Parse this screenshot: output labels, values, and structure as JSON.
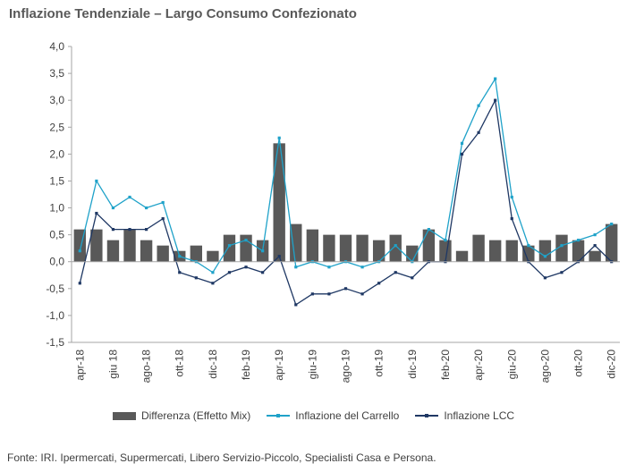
{
  "chart_data": {
    "type": "bar",
    "title": "Inflazione Tendenziale – Largo Consumo Confezionato",
    "ylim": [
      -1.5,
      4.0
    ],
    "yticks": [
      "4,0",
      "3,5",
      "3,0",
      "2,5",
      "2,0",
      "1,5",
      "1,0",
      "0,5",
      "0,0",
      "-0,5",
      "-1,0",
      "-1,5"
    ],
    "ytick_values": [
      4.0,
      3.5,
      3.0,
      2.5,
      2.0,
      1.5,
      1.0,
      0.5,
      0.0,
      -0.5,
      -1.0,
      -1.5
    ],
    "categories": [
      "apr-18",
      "mag-18",
      "giu-18",
      "lug-18",
      "ago-18",
      "set-18",
      "ott-18",
      "nov-18",
      "dic-18",
      "gen-19",
      "feb-19",
      "mar-19",
      "apr-19",
      "mag-19",
      "giu-19",
      "lug-19",
      "ago-19",
      "set-19",
      "ott-19",
      "nov-19",
      "dic-19",
      "gen-20",
      "feb-20",
      "mar-20",
      "apr-20",
      "mag-20",
      "giu-20",
      "lug-20",
      "ago-20",
      "set-20",
      "ott-20",
      "nov-20",
      "dic-20"
    ],
    "tick_labels": [
      "apr-18",
      "giu 18",
      "ago-18",
      "ott-18",
      "dic-18",
      "feb-19",
      "apr-19",
      "giu-19",
      "ago-19",
      "ott-19",
      "dic-19",
      "feb-20",
      "apr-20",
      "giu-20",
      "ago-20",
      "ott-20",
      "dic-20"
    ],
    "series": [
      {
        "name": "Differenza (Effetto Mix)",
        "type": "bar",
        "color": "#595959",
        "values": [
          0.6,
          0.6,
          0.4,
          0.6,
          0.4,
          0.3,
          0.2,
          0.3,
          0.2,
          0.5,
          0.5,
          0.4,
          2.2,
          0.7,
          0.6,
          0.5,
          0.5,
          0.5,
          0.4,
          0.5,
          0.3,
          0.6,
          0.4,
          0.2,
          0.5,
          0.4,
          0.4,
          0.3,
          0.4,
          0.5,
          0.4,
          0.2,
          0.7
        ]
      },
      {
        "name": "Inflazione del Carrello",
        "type": "line",
        "color": "#1fa2c9",
        "values": [
          0.2,
          1.5,
          1.0,
          1.2,
          1.0,
          1.1,
          0.1,
          0.0,
          -0.2,
          0.3,
          0.4,
          0.2,
          2.3,
          -0.1,
          0.0,
          -0.1,
          0.0,
          -0.1,
          0.0,
          0.3,
          0.0,
          0.6,
          0.4,
          2.2,
          2.9,
          3.4,
          1.2,
          0.3,
          0.1,
          0.3,
          0.4,
          0.5,
          0.7
        ]
      },
      {
        "name": "Inflazione LCC",
        "type": "line",
        "color": "#1f3864",
        "values": [
          -0.4,
          0.9,
          0.6,
          0.6,
          0.6,
          0.8,
          -0.2,
          -0.3,
          -0.4,
          -0.2,
          -0.1,
          -0.2,
          0.1,
          -0.8,
          -0.6,
          -0.6,
          -0.5,
          -0.6,
          -0.4,
          -0.2,
          -0.3,
          0.0,
          0.0,
          2.0,
          2.4,
          3.0,
          0.8,
          0.0,
          -0.3,
          -0.2,
          0.0,
          0.3,
          0.0
        ]
      }
    ],
    "legend_position": "bottom",
    "grid": false
  },
  "source_note": "Fonte: IRI. Ipermercati, Supermercati, Libero Servizio-Piccolo, Specialisti Casa e Persona."
}
